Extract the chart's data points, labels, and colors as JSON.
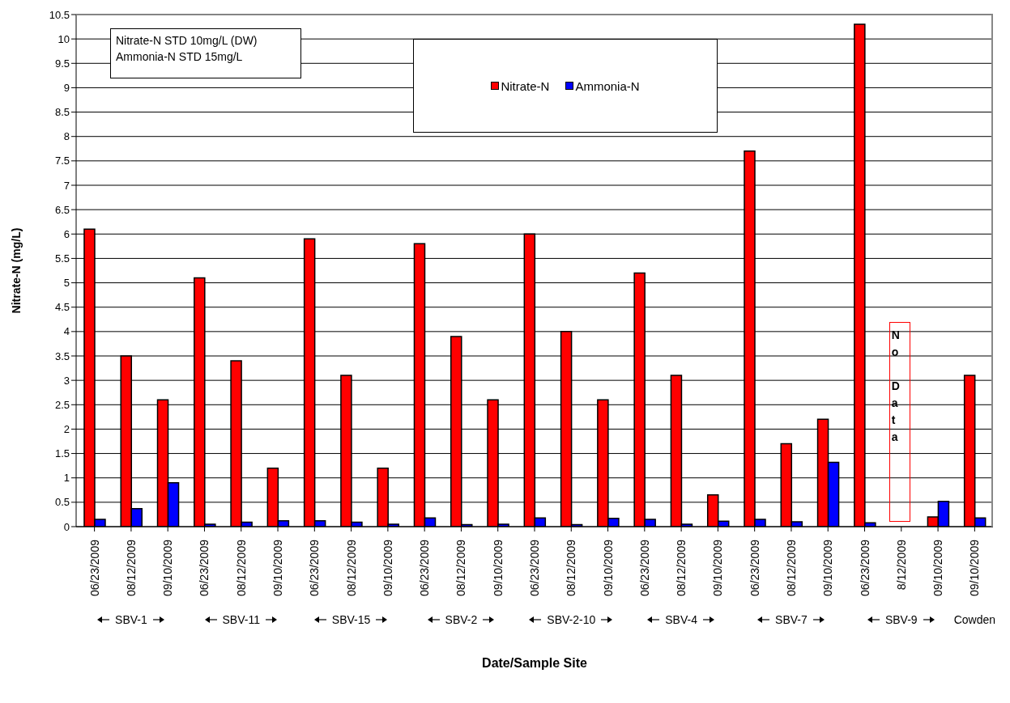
{
  "chart_data": {
    "type": "bar",
    "xlabel": "Date/Sample Site",
    "ylabel": "Nitrate-N (mg/L)",
    "categories": [
      "06/23/2009",
      "08/12/2009",
      "09/10/2009",
      "06/23/2009",
      "08/12/2009",
      "09/10/2009",
      "06/23/2009",
      "08/12/2009",
      "09/10/2009",
      "06/23/2009",
      "08/12/2009",
      "09/10/2009",
      "06/23/2009",
      "08/12/2009",
      "09/10/2009",
      "06/23/2009",
      "08/12/2009",
      "09/10/2009",
      "06/23/2009",
      "08/12/2009",
      "09/10/2009",
      "06/23/2009",
      "8/12/2009",
      "09/10/2009",
      "09/10/2009"
    ],
    "series": [
      {
        "name": "Nitrate-N",
        "color": "#ff0000",
        "values": [
          6.1,
          3.5,
          2.6,
          5.1,
          3.4,
          1.2,
          5.9,
          3.1,
          1.2,
          5.8,
          3.9,
          2.6,
          6.0,
          4.0,
          2.6,
          5.2,
          3.1,
          0.65,
          7.7,
          1.7,
          2.2,
          10.3,
          null,
          0.2,
          3.1
        ]
      },
      {
        "name": "Ammonia-N",
        "color": "#0000ff",
        "values": [
          0.15,
          0.37,
          0.9,
          0.05,
          0.09,
          0.12,
          0.12,
          0.09,
          0.05,
          0.18,
          0.04,
          0.05,
          0.18,
          0.04,
          0.17,
          0.15,
          0.05,
          0.11,
          0.15,
          0.1,
          1.32,
          0.08,
          null,
          0.52,
          0.18
        ]
      }
    ],
    "ylim": [
      0,
      10.5
    ],
    "yticks": [
      0,
      0.5,
      1,
      1.5,
      2,
      2.5,
      3,
      3.5,
      4,
      4.5,
      5,
      5.5,
      6,
      6.5,
      7,
      7.5,
      8,
      8.5,
      9,
      9.5,
      10,
      10.5
    ],
    "grid": "y",
    "legend": "top",
    "annotations": [
      "Nitrate-N STD 10mg/L (DW)",
      "Ammonia-N STD 15mg/L",
      "No Data",
      "SBV-1",
      "SBV-11",
      "SBV-15",
      "SBV-2",
      "SBV-2-10",
      "SBV-4",
      "SBV-7",
      "SBV-9",
      "Cowden"
    ]
  }
}
